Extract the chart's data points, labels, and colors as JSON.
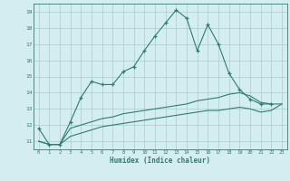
{
  "xlabel": "Humidex (Indice chaleur)",
  "x": [
    0,
    1,
    2,
    3,
    4,
    5,
    6,
    7,
    8,
    9,
    10,
    11,
    12,
    13,
    14,
    15,
    16,
    17,
    18,
    19,
    20,
    21,
    22,
    23
  ],
  "line1": [
    11.8,
    10.8,
    10.8,
    12.2,
    13.7,
    14.7,
    14.5,
    14.5,
    15.3,
    15.6,
    16.6,
    17.5,
    18.3,
    19.1,
    18.6,
    16.6,
    18.2,
    17.0,
    15.2,
    14.2,
    13.6,
    13.3,
    13.3,
    null
  ],
  "line2": [
    11.0,
    10.8,
    10.8,
    11.8,
    12.0,
    12.2,
    12.4,
    12.5,
    12.7,
    12.8,
    12.9,
    13.0,
    13.1,
    13.2,
    13.3,
    13.5,
    13.6,
    13.7,
    13.9,
    14.0,
    13.8,
    13.4,
    13.3,
    13.3
  ],
  "line3": [
    11.0,
    10.8,
    10.8,
    11.3,
    11.5,
    11.7,
    11.9,
    12.0,
    12.1,
    12.2,
    12.3,
    12.4,
    12.5,
    12.6,
    12.7,
    12.8,
    12.9,
    12.9,
    13.0,
    13.1,
    13.0,
    12.8,
    12.9,
    13.3
  ],
  "ylim": [
    10.5,
    19.5
  ],
  "yticks": [
    11,
    12,
    13,
    14,
    15,
    16,
    17,
    18,
    19
  ],
  "xlim": [
    -0.5,
    23.5
  ],
  "bg_color": "#d4edf0",
  "line_color": "#2e7d6e",
  "grid_color": "#a8cccc"
}
